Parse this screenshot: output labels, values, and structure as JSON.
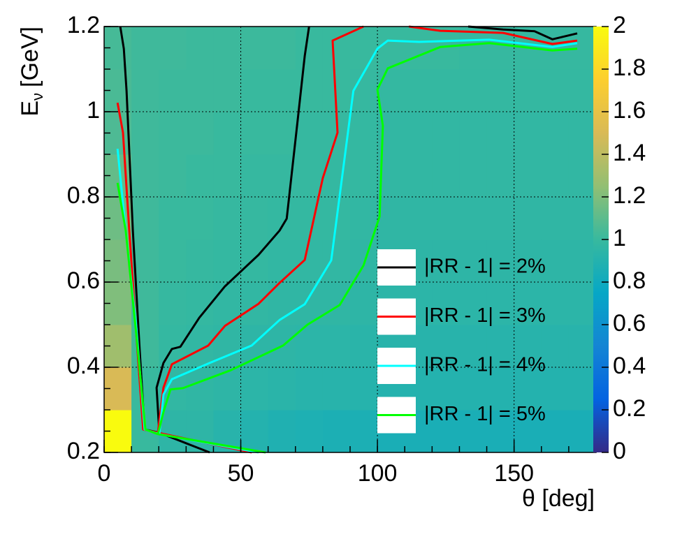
{
  "chart_data": {
    "type": "heatmap_contour",
    "xlabel": "θ [deg]",
    "ylabel": {
      "main": "E",
      "sub": "ν",
      "unit": "[GeV]"
    },
    "xlim": [
      0,
      180
    ],
    "ylim": [
      0.2,
      1.2
    ],
    "zlim": [
      0,
      2
    ],
    "xticks": [
      0,
      50,
      100,
      150
    ],
    "yticks": [
      0.2,
      0.4,
      0.6,
      0.8,
      1,
      1.2
    ],
    "zticks": [
      0,
      0.2,
      0.4,
      0.6,
      0.8,
      1,
      1.2,
      1.4,
      1.6,
      1.8,
      2
    ],
    "grid": true,
    "colorscale": [
      "#352a87",
      "#0363e1",
      "#1485d4",
      "#06a7c6",
      "#38b99e",
      "#92bf73",
      "#d9ba56",
      "#fcce2e",
      "#f9fb0e"
    ],
    "x_edges": [
      0,
      10,
      20,
      30,
      40,
      50,
      60,
      70,
      80,
      90,
      100,
      110,
      120,
      130,
      140,
      150,
      160,
      170,
      180
    ],
    "y_edges": [
      0.2,
      0.3,
      0.4,
      0.5,
      0.6,
      0.7,
      0.8,
      0.9,
      1.0,
      1.1,
      1.2
    ],
    "z": [
      [
        2.0,
        1.0,
        0.95,
        0.95,
        0.92,
        0.9,
        0.88,
        0.87,
        0.86,
        0.86,
        0.85,
        0.85,
        0.85,
        0.85,
        0.85,
        0.85,
        0.85,
        0.85
      ],
      [
        1.5,
        1.0,
        0.97,
        0.96,
        0.95,
        0.94,
        0.93,
        0.92,
        0.92,
        0.91,
        0.9,
        0.9,
        0.9,
        0.9,
        0.9,
        0.9,
        0.9,
        0.9
      ],
      [
        1.3,
        1.02,
        0.98,
        0.97,
        0.96,
        0.95,
        0.95,
        0.94,
        0.94,
        0.93,
        0.92,
        0.92,
        0.92,
        0.92,
        0.92,
        0.92,
        0.92,
        0.92
      ],
      [
        1.2,
        1.02,
        0.99,
        0.98,
        0.97,
        0.97,
        0.96,
        0.96,
        0.96,
        0.95,
        0.94,
        0.94,
        0.94,
        0.94,
        0.94,
        0.94,
        0.94,
        0.94
      ],
      [
        1.18,
        1.02,
        1.0,
        0.99,
        0.98,
        0.98,
        0.97,
        0.97,
        0.97,
        0.96,
        0.95,
        0.95,
        0.95,
        0.95,
        0.95,
        0.95,
        0.95,
        0.95
      ],
      [
        1.15,
        1.02,
        1.0,
        1.0,
        0.99,
        0.99,
        0.98,
        0.98,
        0.98,
        0.97,
        0.96,
        0.96,
        0.96,
        0.96,
        0.96,
        0.96,
        0.96,
        0.96
      ],
      [
        1.12,
        1.02,
        1.01,
        1.0,
        1.0,
        0.99,
        0.99,
        0.99,
        0.98,
        0.98,
        0.97,
        0.97,
        0.97,
        0.97,
        0.97,
        0.97,
        0.97,
        0.97
      ],
      [
        1.06,
        1.02,
        1.01,
        1.01,
        1.0,
        1.0,
        1.0,
        0.99,
        0.99,
        0.98,
        0.97,
        0.97,
        0.97,
        0.97,
        0.97,
        0.97,
        0.97,
        0.97
      ],
      [
        1.05,
        1.02,
        1.01,
        1.01,
        1.01,
        1.0,
        1.0,
        1.0,
        1.0,
        0.99,
        0.98,
        0.98,
        0.98,
        0.98,
        0.98,
        0.98,
        0.98,
        0.98
      ],
      [
        1.04,
        1.02,
        1.02,
        1.01,
        1.01,
        1.01,
        1.01,
        1.0,
        1.0,
        1.0,
        1.0,
        1.0,
        1.0,
        0.99,
        0.99,
        0.99,
        0.99,
        0.99
      ]
    ],
    "series": [
      {
        "name": "|RR - 1| = 2%",
        "color": "#000000",
        "x": [
          5.9,
          7.2,
          8.2,
          10.5,
          13,
          14.8,
          20.2,
          38.6,
          null,
          20.2,
          19.2,
          21.7,
          24.8,
          27.9,
          34.8,
          44.2,
          56.5,
          64.2,
          66.8,
          70.6,
          73.4,
          75,
          null,
          133.2,
          146,
          157.5,
          164,
          173.1
        ],
        "y": [
          1.2,
          1.148,
          1.049,
          0.721,
          0.443,
          0.254,
          0.246,
          0.2,
          null,
          0.246,
          0.352,
          0.41,
          0.443,
          0.448,
          0.516,
          0.59,
          0.664,
          0.721,
          0.749,
          0.967,
          1.131,
          1.2,
          null,
          1.2,
          1.193,
          1.189,
          1.17,
          1.184
        ]
      },
      {
        "name": "|RR - 1| = 3%",
        "color": "#ff0000",
        "x": [
          4.9,
          6.9,
          9.2,
          11.8,
          14.3,
          19.7,
          54,
          null,
          19.7,
          21.7,
          24.8,
          38.1,
          44.2,
          56.5,
          64.2,
          73.4,
          80,
          85.4,
          83.6,
          94.9,
          null,
          111.5,
          123,
          146,
          164,
          173.1
        ],
        "y": [
          1.021,
          0.951,
          0.721,
          0.475,
          0.254,
          0.246,
          0.2,
          null,
          0.246,
          0.352,
          0.407,
          0.451,
          0.497,
          0.549,
          0.598,
          0.652,
          0.844,
          0.951,
          1.167,
          1.2,
          null,
          1.2,
          1.19,
          1.185,
          1.159,
          1.167
        ]
      },
      {
        "name": "|RR - 1| = 4%",
        "color": "#00ffff",
        "x": [
          4.9,
          7.9,
          11.8,
          14.8,
          20.2,
          56.5,
          null,
          20.2,
          21.7,
          24.8,
          38.6,
          54,
          64.2,
          73.4,
          83.1,
          91.2,
          100,
          103.8,
          115.3,
          140.9,
          164,
          173.1
        ],
        "y": [
          0.913,
          0.721,
          0.492,
          0.254,
          0.243,
          0.2,
          null,
          0.243,
          0.336,
          0.372,
          0.41,
          0.451,
          0.511,
          0.548,
          0.651,
          1.049,
          1.148,
          1.167,
          1.164,
          1.169,
          1.152,
          1.161
        ]
      },
      {
        "name": "|RR - 1| = 5%",
        "color": "#00ff00",
        "x": [
          4.9,
          7.9,
          11.8,
          15.1,
          19.7,
          59.1,
          null,
          19.7,
          21.7,
          24.3,
          28.9,
          46.3,
          65.5,
          74.4,
          86.2,
          94.9,
          100.8,
          102,
          100,
          103.8,
          123,
          140.9,
          164,
          173.1
        ],
        "y": [
          0.833,
          0.721,
          0.475,
          0.254,
          0.243,
          0.2,
          null,
          0.243,
          0.295,
          0.348,
          0.351,
          0.393,
          0.451,
          0.5,
          0.546,
          0.639,
          0.754,
          0.967,
          1.052,
          1.102,
          1.152,
          1.161,
          1.144,
          1.148
        ]
      }
    ]
  }
}
